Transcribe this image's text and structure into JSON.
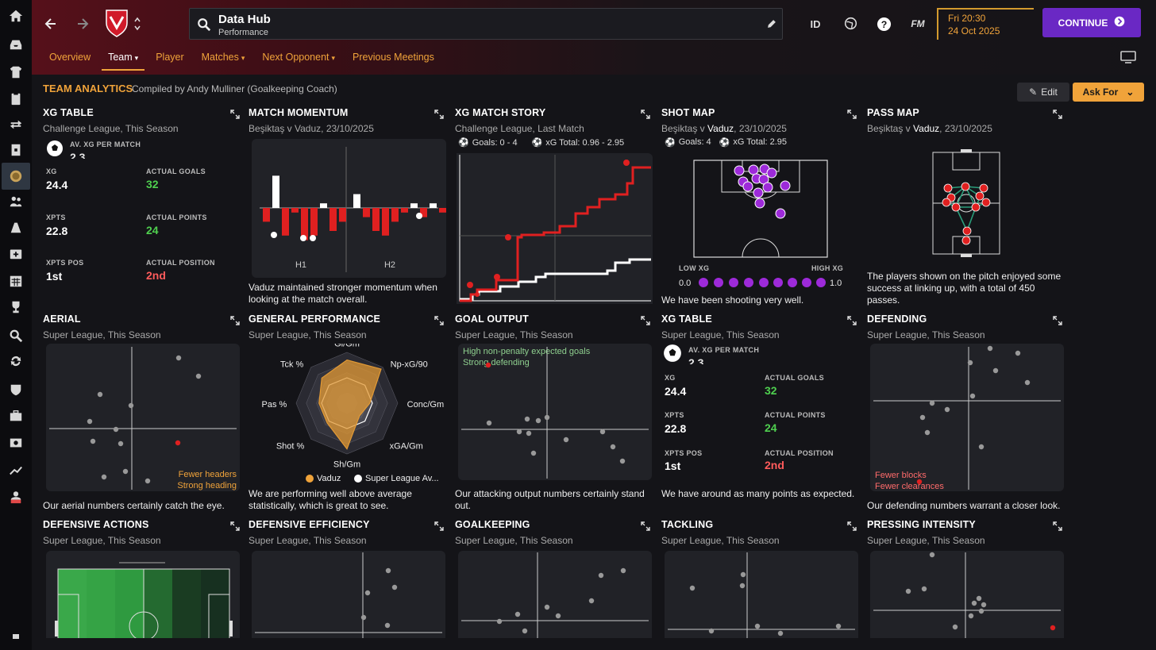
{
  "header": {
    "title": "Data Hub",
    "subtitle": "Performance",
    "id_label": "ID",
    "fm_label": "FM",
    "date_time": "Fri 20:30",
    "date_day": "24 Oct 2025",
    "continue_label": "CONTINUE"
  },
  "tabs": [
    {
      "label": "Overview"
    },
    {
      "label": "Team"
    },
    {
      "label": "Player"
    },
    {
      "label": "Matches"
    },
    {
      "label": "Next Opponent"
    },
    {
      "label": "Previous Meetings"
    }
  ],
  "analytics": {
    "title": "TEAM ANALYTICS",
    "compiled": "Compiled by Andy Mulliner (Goalkeeping Coach)",
    "edit_label": "Edit",
    "askfor_label": "Ask For"
  },
  "colors": {
    "accent": "#f0a33a",
    "continue": "#6a28c4",
    "positive": "#4fd04f",
    "negative": "#ff5b5b",
    "vaduz": "#f0a33a"
  },
  "cards": {
    "xg1": {
      "title": "XG TABLE",
      "sub": "Challenge League, This Season",
      "av_label": "AV. XG PER MATCH",
      "av_val": "2.3",
      "xg_label": "XG",
      "xg": "24.4",
      "ag_label": "ACTUAL GOALS",
      "ag": "32",
      "xpts_label": "XPTS",
      "xpts": "22.8",
      "ap_label": "ACTUAL POINTS",
      "ap": "24",
      "xpos_label": "XPTS POS",
      "xpos": "1st",
      "apos_label": "ACTUAL POSITION",
      "apos": "2nd"
    },
    "momentum": {
      "title": "MATCH MOMENTUM",
      "sub": "Beşiktaş v Vaduz, 23/10/2025",
      "h1": "H1",
      "h2": "H2",
      "desc": "Vaduz maintained stronger momentum when looking at the match overall."
    },
    "xgstory": {
      "title": "XG MATCH STORY",
      "sub": "Challenge League, Last Match",
      "goals": "Goals: 0 - 4",
      "xg_total": "xG Total: 0.96 - 2.95"
    },
    "shotmap": {
      "title": "SHOT MAP",
      "sub_pre": "Beşiktaş v ",
      "sub_team": "Vaduz",
      "sub_post": ", 23/10/2025",
      "goals": "Goals: 4",
      "xg_total": "xG Total: 2.95",
      "low": "LOW XG",
      "high": "HIGH XG",
      "min": "0.0",
      "max": "1.0",
      "desc": "We have been shooting very well."
    },
    "passmap": {
      "title": "PASS MAP",
      "sub_pre": "Beşiktaş v ",
      "sub_team": "Vaduz",
      "sub_post": ", 23/10/2025",
      "desc": "The players shown on the pitch enjoyed some success at linking up, with a total of 450 passes."
    },
    "aerial": {
      "title": "AERIAL",
      "sub": "Super League, This Season",
      "note1": "Fewer headers",
      "note2": "Strong heading",
      "desc": "Our aerial numbers certainly catch the eye."
    },
    "general": {
      "title": "GENERAL PERFORMANCE",
      "sub": "Super League, This Season",
      "legend1": "Vaduz",
      "legend2": "Super League Av...",
      "desc": "We are performing well above average statistically, which is great to see."
    },
    "goaloutput": {
      "title": "GOAL OUTPUT",
      "sub": "Super League, This Season",
      "note1": "High non-penalty expected goals",
      "note2": "Strong defending",
      "desc": "Our attacking output numbers certainly stand out."
    },
    "xg2": {
      "title": "XG TABLE",
      "sub": "Super League, This Season",
      "av_label": "AV. XG PER MATCH",
      "av_val": "2.3",
      "xg_label": "XG",
      "xg": "24.4",
      "ag_label": "ACTUAL GOALS",
      "ag": "32",
      "xpts_label": "XPTS",
      "xpts": "22.8",
      "ap_label": "ACTUAL POINTS",
      "ap": "24",
      "xpos_label": "XPTS POS",
      "xpos": "1st",
      "apos_label": "ACTUAL POSITION",
      "apos": "2nd",
      "desc": "We have around as many points as expected."
    },
    "defending": {
      "title": "DEFENDING",
      "sub": "Super League, This Season",
      "note1": "Fewer blocks",
      "note2": "Fewer clearances",
      "desc": "Our defending numbers warrant a closer look."
    },
    "defactions": {
      "title": "DEFENSIVE ACTIONS",
      "sub": "Super League, This Season"
    },
    "defeff": {
      "title": "DEFENSIVE EFFICIENCY",
      "sub": "Super League, This Season"
    },
    "goalkeeping": {
      "title": "GOALKEEPING",
      "sub": "Super League, This Season"
    },
    "tackling": {
      "title": "TACKLING",
      "sub": "Super League, This Season"
    },
    "pressing": {
      "title": "PRESSING INTENSITY",
      "sub": "Super League, This Season"
    }
  },
  "chart_data": [
    {
      "id": "momentum",
      "type": "bar",
      "title": "MATCH MOMENTUM",
      "values": [
        -0.3,
        0.7,
        -0.6,
        -0.1,
        -0.7,
        -0.6,
        0.1,
        -0.5,
        -0.3,
        0.3,
        -0.2,
        -0.5,
        -0.6,
        -0.3,
        -0.1,
        0.1,
        -0.2,
        0.1,
        -0.1
      ],
      "ylim": [
        -1,
        1
      ]
    },
    {
      "id": "radar",
      "type": "radar",
      "axes": [
        "Gl/Gm",
        "Np-xG/90",
        "Conc/Gm",
        "xGA/Gm",
        "Sh/Gm",
        "Shot %",
        "Pas %",
        "Tck %"
      ],
      "series": [
        {
          "name": "Vaduz",
          "values": [
            0.85,
            0.95,
            0.45,
            0.35,
            0.9,
            0.55,
            0.55,
            0.7
          ]
        },
        {
          "name": "Super League Av...",
          "values": [
            0.5,
            0.5,
            0.5,
            0.5,
            0.5,
            0.5,
            0.5,
            0.5
          ]
        }
      ]
    }
  ]
}
